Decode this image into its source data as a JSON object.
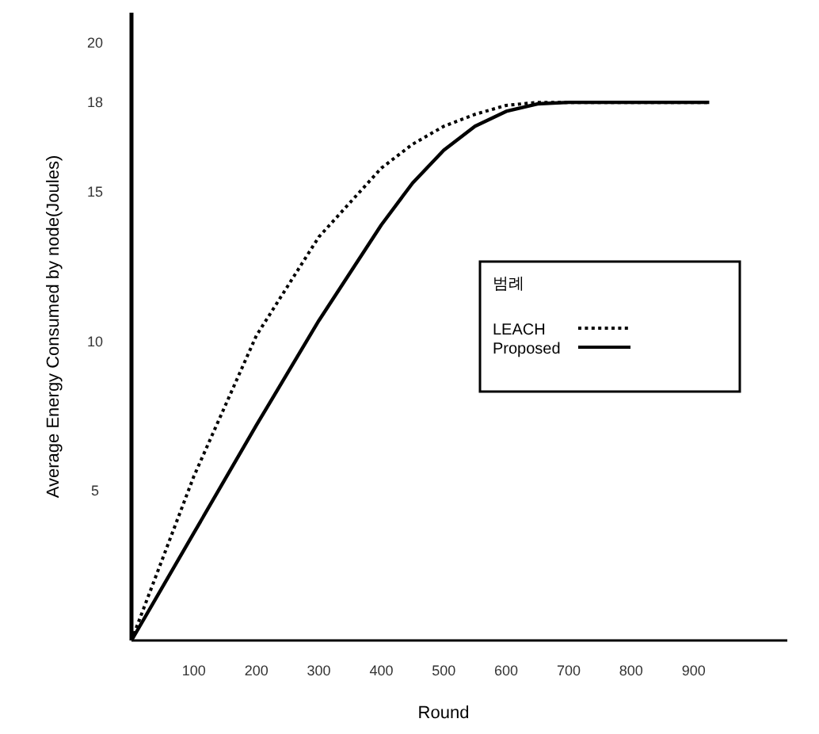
{
  "chart_data": {
    "type": "line",
    "xlabel": "Round",
    "ylabel": "Average Energy Consumed by node(Joules)",
    "legend_title": "범례",
    "legend": "center right",
    "marker": "none",
    "xlim": [
      0,
      1050
    ],
    "ylim": [
      0,
      21
    ],
    "xticks": [
      100,
      200,
      300,
      400,
      500,
      600,
      700,
      800,
      900
    ],
    "yticks": [
      5,
      10,
      15,
      18,
      20
    ],
    "x": [
      0,
      100,
      200,
      300,
      400,
      450,
      500,
      550,
      600,
      650,
      700,
      800,
      925
    ],
    "series": [
      {
        "name": "LEACH",
        "color": "#000000",
        "line_style": "dotted",
        "values": [
          0,
          5.5,
          10.2,
          13.5,
          15.8,
          16.6,
          17.2,
          17.6,
          17.9,
          18,
          18,
          18,
          18
        ]
      },
      {
        "name": "Proposed",
        "color": "#000000",
        "line_style": "solid",
        "values": [
          0,
          3.6,
          7.2,
          10.7,
          13.9,
          15.3,
          16.4,
          17.2,
          17.7,
          17.95,
          18,
          18,
          18
        ]
      }
    ]
  }
}
